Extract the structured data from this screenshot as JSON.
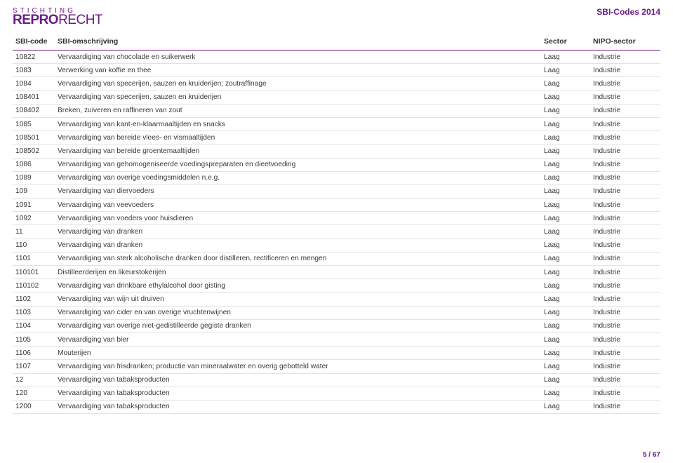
{
  "header": {
    "logo_line1": "STICHTING",
    "logo_line2a": "REPRO",
    "logo_line2b": "RECHT",
    "doc_title": "SBI-Codes 2014"
  },
  "table": {
    "columns": [
      "SBI-code",
      "SBI-omschrijving",
      "Sector",
      "NIPO-sector"
    ],
    "rows": [
      [
        "10822",
        "Vervaardiging van chocolade en suikerwerk",
        "Laag",
        "Industrie"
      ],
      [
        "1083",
        "Verwerking van koffie en thee",
        "Laag",
        "Industrie"
      ],
      [
        "1084",
        "Vervaardiging van specerijen, sauzen en kruiderijen; zoutraffinage",
        "Laag",
        "Industrie"
      ],
      [
        "108401",
        "Vervaardiging van specerijen, sauzen en kruiderijen",
        "Laag",
        "Industrie"
      ],
      [
        "108402",
        "Breken, zuiveren en raffineren van zout",
        "Laag",
        "Industrie"
      ],
      [
        "1085",
        "Vervaardiging van kant-en-klaarmaaltijden en snacks",
        "Laag",
        "Industrie"
      ],
      [
        "108501",
        "Vervaardiging van bereide vlees- en vismaaltijden",
        "Laag",
        "Industrie"
      ],
      [
        "108502",
        "Vervaardiging van bereide groentemaaltijden",
        "Laag",
        "Industrie"
      ],
      [
        "1086",
        "Vervaardiging van gehomogeniseerde voedingspreparaten en dieetvoeding",
        "Laag",
        "Industrie"
      ],
      [
        "1089",
        "Vervaardiging van overige voedingsmiddelen n.e.g.",
        "Laag",
        "Industrie"
      ],
      [
        "109",
        "Vervaardiging van diervoeders",
        "Laag",
        "Industrie"
      ],
      [
        "1091",
        "Vervaardiging van veevoeders",
        "Laag",
        "Industrie"
      ],
      [
        "1092",
        "Vervaardiging van voeders voor huisdieren",
        "Laag",
        "Industrie"
      ],
      [
        "11",
        "Vervaardiging van dranken",
        "Laag",
        "Industrie"
      ],
      [
        "110",
        "Vervaardiging van dranken",
        "Laag",
        "Industrie"
      ],
      [
        "1101",
        "Vervaardiging van sterk alcoholische dranken door distilleren, rectificeren en mengen",
        "Laag",
        "Industrie"
      ],
      [
        "110101",
        "Distilleerderijen en likeurstokerijen",
        "Laag",
        "Industrie"
      ],
      [
        "110102",
        "Vervaardiging van drinkbare ethylalcohol door gisting",
        "Laag",
        "Industrie"
      ],
      [
        "1102",
        "Vervaardiging van wijn uit druiven",
        "Laag",
        "Industrie"
      ],
      [
        "1103",
        "Vervaardiging van cider en van overige vruchtenwijnen",
        "Laag",
        "Industrie"
      ],
      [
        "1104",
        "Vervaardiging van overige niet-gedistilleerde gegiste dranken",
        "Laag",
        "Industrie"
      ],
      [
        "1105",
        "Vervaardiging van bier",
        "Laag",
        "Industrie"
      ],
      [
        "1106",
        "Mouterijen",
        "Laag",
        "Industrie"
      ],
      [
        "1107",
        "Vervaardiging van frisdranken; productie van mineraalwater en overig gebotteld water",
        "Laag",
        "Industrie"
      ],
      [
        "12",
        "Vervaardiging van tabaksproducten",
        "Laag",
        "Industrie"
      ],
      [
        "120",
        "Vervaardiging van tabaksproducten",
        "Laag",
        "Industrie"
      ],
      [
        "1200",
        "Vervaardiging van tabaksproducten",
        "Laag",
        "Industrie"
      ]
    ]
  },
  "footer": {
    "page": "5 / 67"
  }
}
